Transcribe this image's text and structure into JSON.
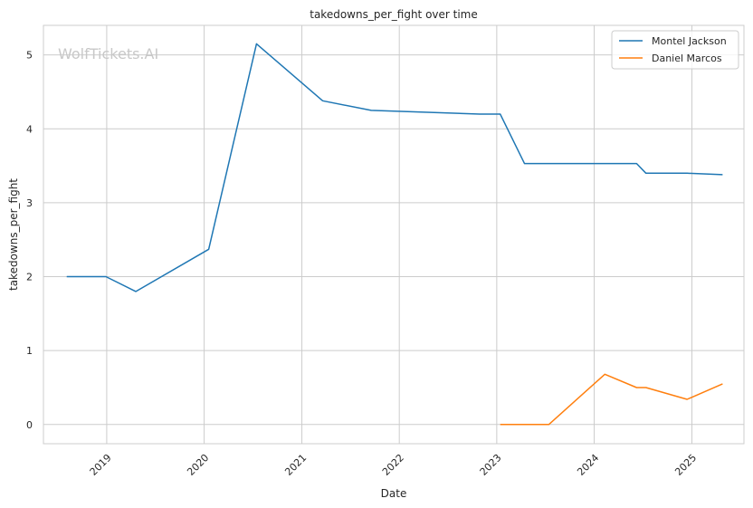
{
  "chart_data": {
    "type": "line",
    "title": "takedowns_per_fight over time",
    "xlabel": "Date",
    "ylabel": "takedowns_per_fight",
    "watermark": "WolfTickets.AI",
    "x_ticks": [
      "2019",
      "2020",
      "2021",
      "2022",
      "2023",
      "2024",
      "2025"
    ],
    "y_ticks": [
      "0",
      "1",
      "2",
      "3",
      "4",
      "5"
    ],
    "xlim": [
      "2018-05-09",
      "2025-07-15"
    ],
    "ylim": [
      -0.26,
      5.4
    ],
    "grid": true,
    "legend_position": "top-right",
    "series": [
      {
        "name": "Montel Jackson",
        "color": "#1f77b4",
        "points": [
          {
            "x": "2018-08-04",
            "y": 2.0
          },
          {
            "x": "2018-12-29",
            "y": 2.0
          },
          {
            "x": "2019-04-20",
            "y": 1.8
          },
          {
            "x": "2020-01-18",
            "y": 2.37
          },
          {
            "x": "2020-07-15",
            "y": 5.15
          },
          {
            "x": "2021-03-20",
            "y": 4.38
          },
          {
            "x": "2021-09-18",
            "y": 4.25
          },
          {
            "x": "2022-10-29",
            "y": 4.2
          },
          {
            "x": "2023-01-14",
            "y": 4.2
          },
          {
            "x": "2023-04-15",
            "y": 3.53
          },
          {
            "x": "2024-06-08",
            "y": 3.53
          },
          {
            "x": "2024-07-13",
            "y": 3.4
          },
          {
            "x": "2024-12-14",
            "y": 3.4
          },
          {
            "x": "2025-04-26",
            "y": 3.38
          }
        ]
      },
      {
        "name": "Daniel Marcos",
        "color": "#ff7f0e",
        "points": [
          {
            "x": "2023-01-14",
            "y": 0.0
          },
          {
            "x": "2023-07-15",
            "y": 0.0
          },
          {
            "x": "2024-02-10",
            "y": 0.68
          },
          {
            "x": "2024-06-08",
            "y": 0.5
          },
          {
            "x": "2024-07-13",
            "y": 0.5
          },
          {
            "x": "2024-12-14",
            "y": 0.34
          },
          {
            "x": "2025-04-26",
            "y": 0.55
          }
        ]
      }
    ]
  }
}
